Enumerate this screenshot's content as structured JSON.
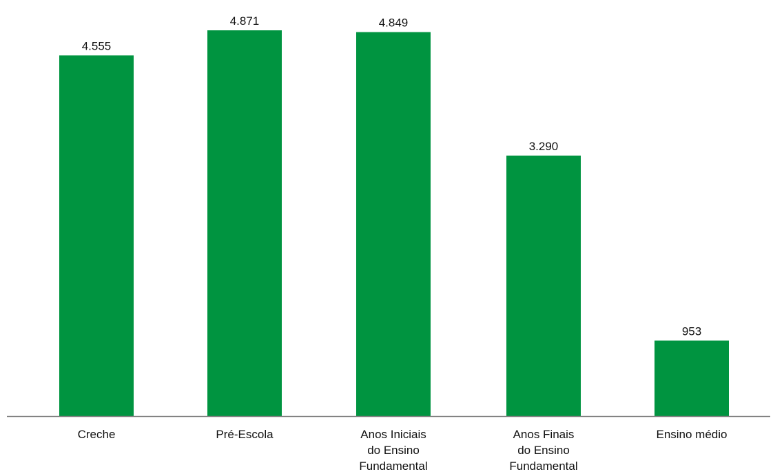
{
  "chart_data": {
    "type": "bar",
    "categories": [
      [
        "Creche"
      ],
      [
        "Pré-Escola"
      ],
      [
        "Anos Iniciais",
        "do Ensino",
        "Fundamental"
      ],
      [
        "Anos Finais",
        "do Ensino",
        "Fundamental"
      ],
      [
        "Ensino médio"
      ]
    ],
    "values": [
      4555,
      4871,
      4849,
      3290,
      953
    ],
    "value_labels": [
      "4.555",
      "4.871",
      "4.849",
      "3.290",
      "953"
    ],
    "ylim": [
      0,
      5000
    ],
    "grid": false,
    "legend": "none",
    "bar_color": "#009440",
    "axis_color": "#7f7f7f"
  }
}
